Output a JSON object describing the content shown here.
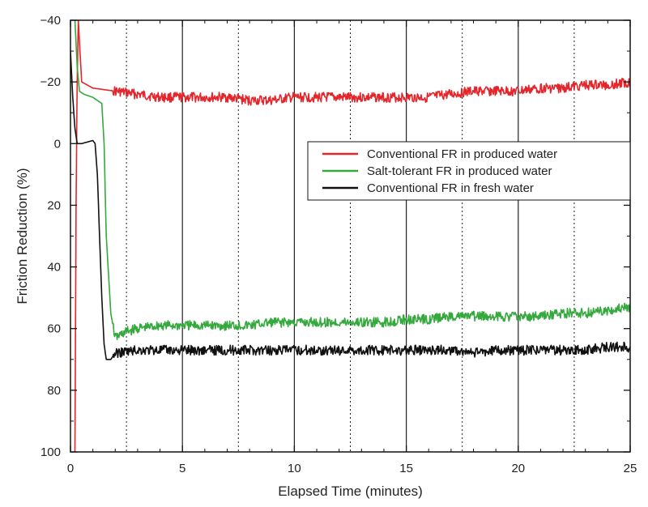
{
  "chart_data": {
    "type": "line",
    "xlabel": "Elapsed Time (minutes)",
    "ylabel": "Friction Reduction (%)",
    "xlim": [
      0,
      25
    ],
    "ylim": [
      100,
      -40
    ],
    "y_axis_inverted": true,
    "x_ticks": [
      "0",
      "5",
      "10",
      "15",
      "20",
      "25"
    ],
    "y_ticks": [
      "-40",
      "-20",
      "0",
      "20",
      "40",
      "60",
      "80",
      "100"
    ],
    "grid": "vertical lines: solid at major ticks, dotted at minor ticks",
    "legend_position": "right",
    "series": [
      {
        "name": "Conventional FR in produced water",
        "color": "#e3262b",
        "x": [
          0.2,
          0.25,
          0.3,
          0.35,
          0.5,
          1,
          2,
          3,
          4,
          5,
          6,
          7,
          8,
          9,
          10,
          11,
          12,
          13,
          14,
          15,
          16,
          17,
          18,
          19,
          20,
          21,
          22,
          23,
          24,
          25
        ],
        "y": [
          100,
          20,
          -20,
          -40,
          -20,
          -18,
          -17,
          -16,
          -15,
          -15,
          -15,
          -15,
          -14,
          -14,
          -15,
          -15,
          -15,
          -15,
          -15,
          -15,
          -15,
          -16,
          -17,
          -17,
          -17,
          -18,
          -18,
          -19,
          -19,
          -20
        ]
      },
      {
        "name": "Salt-tolerant FR in produced water",
        "color": "#35a93e",
        "x": [
          0.2,
          0.3,
          0.4,
          0.6,
          1,
          1.4,
          1.5,
          1.6,
          1.8,
          2,
          2.5,
          3,
          4,
          5,
          6,
          7,
          8,
          9,
          10,
          11,
          12,
          13,
          14,
          15,
          16,
          17,
          18,
          19,
          20,
          21,
          22,
          23,
          24,
          25
        ],
        "y": [
          -40,
          -25,
          -17,
          -16,
          -15,
          -13,
          0,
          30,
          55,
          63,
          61,
          60,
          59,
          59,
          59,
          59,
          59,
          58,
          58,
          58,
          58,
          58,
          58,
          57,
          57,
          56,
          56,
          56,
          56,
          56,
          55,
          55,
          54,
          53
        ]
      },
      {
        "name": "Conventional FR in fresh water",
        "color": "#111111",
        "x": [
          0,
          0.1,
          0.2,
          0.3,
          0.5,
          1,
          1.1,
          1.2,
          1.3,
          1.4,
          1.5,
          1.6,
          1.8,
          2,
          3,
          4,
          5,
          6,
          7,
          8,
          9,
          10,
          11,
          12,
          13,
          14,
          15,
          16,
          17,
          18,
          19,
          20,
          21,
          22,
          23,
          24,
          25
        ],
        "y": [
          -30,
          -15,
          -5,
          0,
          0,
          -1,
          0,
          10,
          30,
          50,
          65,
          70,
          70,
          68,
          67,
          67,
          67,
          67,
          67,
          67,
          67,
          67,
          67,
          67,
          67,
          67,
          67,
          67,
          67,
          68,
          67,
          67,
          67,
          67,
          67,
          66,
          66
        ]
      }
    ]
  }
}
